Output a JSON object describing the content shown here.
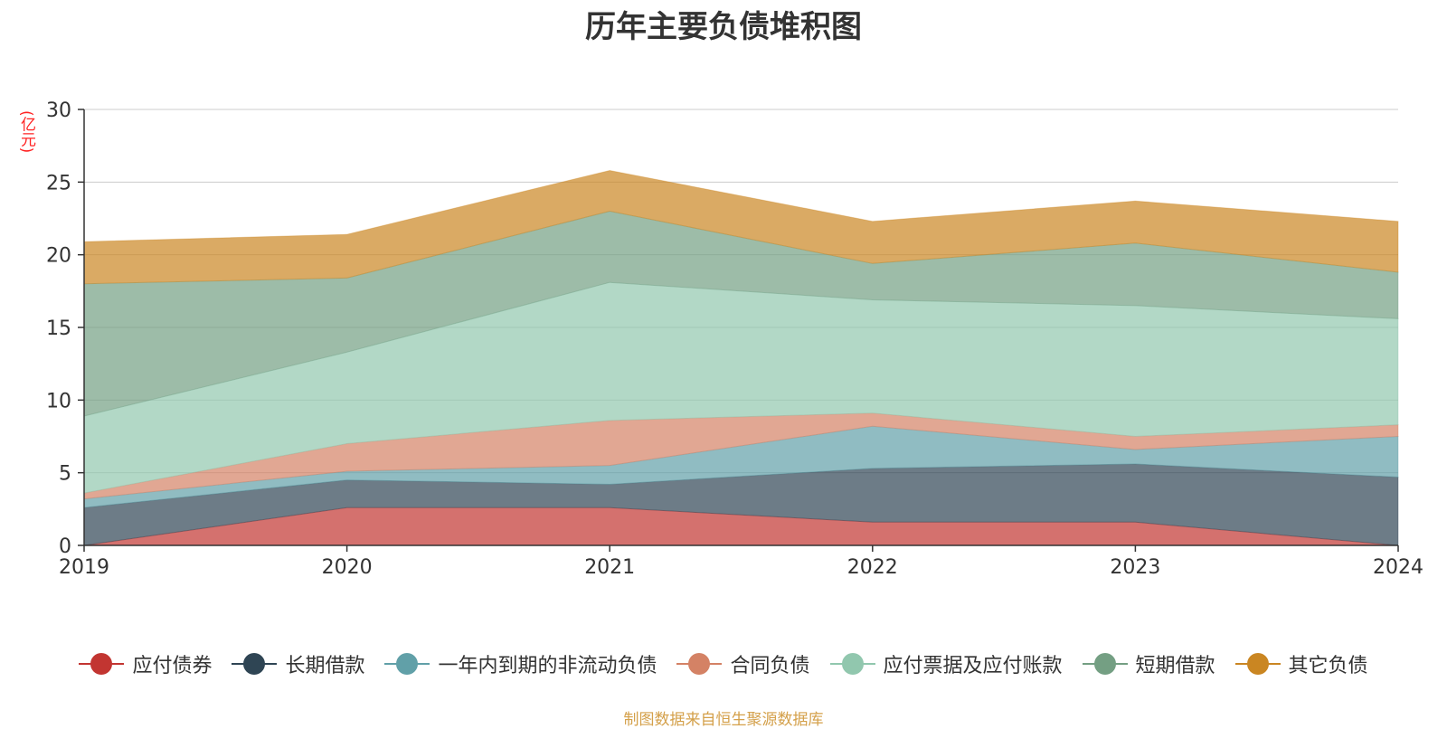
{
  "chart_data": {
    "type": "area",
    "stacked": true,
    "title": "历年主要负债堆积图",
    "ylabel": "(亿元)",
    "xlabel": "",
    "x": [
      "2019",
      "2020",
      "2021",
      "2022",
      "2023",
      "2024"
    ],
    "ylim": [
      0,
      30
    ],
    "yticks": [
      "0",
      "5",
      "10",
      "15",
      "20",
      "25",
      "30"
    ],
    "grid": true,
    "legend_position": "bottom",
    "series": [
      {
        "name": "应付债券",
        "values": [
          0.0,
          2.6,
          2.6,
          1.6,
          1.6,
          0.0
        ],
        "color": "#c23531"
      },
      {
        "name": "长期借款",
        "values": [
          2.6,
          1.9,
          1.6,
          3.7,
          4.0,
          4.7
        ],
        "color": "#2f4554"
      },
      {
        "name": "一年内到期的非流动负债",
        "values": [
          0.6,
          0.6,
          1.3,
          2.9,
          1.0,
          2.8
        ],
        "color": "#61a0a8"
      },
      {
        "name": "合同负债",
        "values": [
          0.4,
          1.9,
          3.1,
          0.9,
          0.9,
          0.8
        ],
        "color": "#d48265"
      },
      {
        "name": "应付票据及应付账款",
        "values": [
          5.3,
          6.3,
          9.5,
          7.8,
          9.0,
          7.3
        ],
        "color": "#91c7ae"
      },
      {
        "name": "短期借款",
        "values": [
          9.1,
          5.1,
          4.9,
          2.5,
          4.3,
          3.2
        ],
        "color": "#749f83"
      },
      {
        "name": "其它负债",
        "values": [
          2.9,
          3.0,
          2.8,
          2.9,
          2.9,
          3.5
        ],
        "color": "#ca8622"
      }
    ]
  },
  "footer": {
    "source": "制图数据来自恒生聚源数据库"
  }
}
